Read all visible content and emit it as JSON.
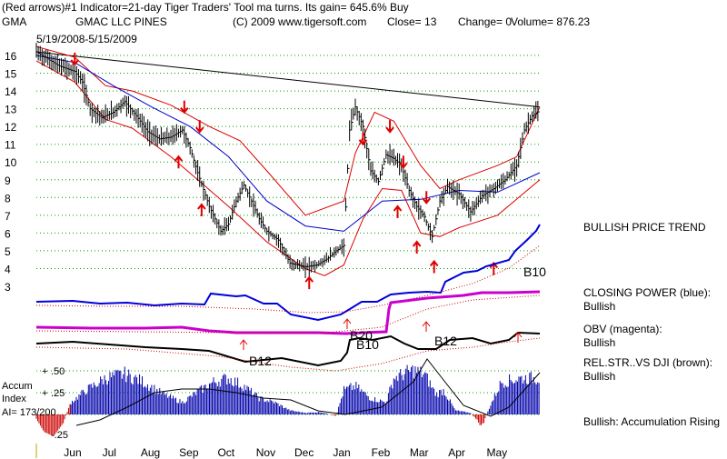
{
  "header": {
    "line1": "(Red arrows)#1 Indicator=21-day Tiger Traders' Tool ma turns. Its gain= 645.6% Buy",
    "ticker": "GMA",
    "company": "GMAC LLC PINES",
    "copyright": "(C) 2009 www.tigersoft.com",
    "close": "Close=  13",
    "change": "Change= 0",
    "volume": "Volume= 876.23",
    "date_range": "5/19/2008-5/15/2009"
  },
  "colors": {
    "price_bars": "#000000",
    "bands": "#dd0000",
    "ma": "#0000cc",
    "closing_power": "#0000dd",
    "obv": "#cc00cc",
    "relstr": "#000000",
    "accum_bars": "#0000aa",
    "accum_negative": "#cc0000",
    "grid": "#00a000",
    "arrows": "#e00000"
  },
  "right_panel": {
    "trend": "BULLISH PRICE TREND",
    "closing_power": "CLOSING POWER (blue):",
    "closing_power_status": "Bullish",
    "obv": "OBV (magenta):",
    "obv_status": "Bullish",
    "relstr": "REL.STR..VS DJI (brown):",
    "relstr_status": "Bullish",
    "accum": "Bullish: Accumulation Rising"
  },
  "accum_panel": {
    "title1": "Accum",
    "title2": "Index",
    "value": "AI= 173/200",
    "ticks": [
      ".50",
      ".25",
      "-.25"
    ]
  },
  "signal_labels": [
    "B10",
    "B20",
    "B10",
    "B12",
    "B12"
  ],
  "chart_data": {
    "type": "line",
    "y_ticks": [
      3,
      4,
      5,
      6,
      7,
      8,
      9,
      10,
      11,
      12,
      13,
      14,
      15,
      16
    ],
    "ylim": [
      3,
      16.5
    ],
    "x_ticks": [
      "Jun",
      "Jul",
      "Aug",
      "Sep",
      "Oct",
      "Nov",
      "Dec",
      "Jan",
      "Feb",
      "Mar",
      "Apr",
      "May"
    ],
    "price_close": [
      [
        0,
        16.2
      ],
      [
        0.3,
        15.8
      ],
      [
        0.6,
        15.4
      ],
      [
        1.0,
        15.1
      ],
      [
        1.2,
        14.5
      ],
      [
        1.4,
        13.0
      ],
      [
        1.7,
        12.5
      ],
      [
        2.0,
        12.8
      ],
      [
        2.3,
        13.4
      ],
      [
        2.6,
        12.6
      ],
      [
        2.9,
        11.7
      ],
      [
        3.2,
        11.3
      ],
      [
        3.5,
        11.4
      ],
      [
        3.8,
        11.8
      ],
      [
        4.0,
        10.8
      ],
      [
        4.2,
        9.4
      ],
      [
        4.5,
        7.5
      ],
      [
        4.8,
        6.1
      ],
      [
        5.0,
        6.5
      ],
      [
        5.2,
        7.8
      ],
      [
        5.4,
        8.7
      ],
      [
        5.6,
        7.8
      ],
      [
        5.8,
        6.8
      ],
      [
        6.0,
        6.1
      ],
      [
        6.3,
        5.6
      ],
      [
        6.6,
        4.3
      ],
      [
        7.0,
        4.1
      ],
      [
        7.3,
        4.2
      ],
      [
        7.6,
        4.6
      ],
      [
        7.8,
        5.0
      ],
      [
        8.0,
        5.3
      ],
      [
        8.15,
        11.8
      ],
      [
        8.3,
        13.1
      ],
      [
        8.5,
        12.0
      ],
      [
        8.7,
        9.5
      ],
      [
        8.9,
        8.9
      ],
      [
        9.1,
        10.4
      ],
      [
        9.3,
        10.2
      ],
      [
        9.5,
        9.8
      ],
      [
        9.7,
        8.4
      ],
      [
        9.9,
        7.5
      ],
      [
        10.1,
        6.9
      ],
      [
        10.3,
        5.8
      ],
      [
        10.5,
        7.8
      ],
      [
        10.7,
        8.6
      ],
      [
        11.0,
        8.2
      ],
      [
        11.3,
        7.2
      ],
      [
        11.6,
        8.1
      ],
      [
        11.9,
        8.5
      ],
      [
        12.2,
        9.0
      ],
      [
        12.5,
        9.8
      ],
      [
        12.7,
        11.8
      ],
      [
        12.9,
        12.6
      ],
      [
        13.1,
        12.9
      ]
    ],
    "ma": [
      [
        0,
        16.0
      ],
      [
        1,
        15.6
      ],
      [
        2,
        14.3
      ],
      [
        3,
        13.1
      ],
      [
        4,
        12.0
      ],
      [
        5,
        10.3
      ],
      [
        6,
        7.8
      ],
      [
        7,
        6.4
      ],
      [
        8,
        6.1
      ],
      [
        9,
        7.8
      ],
      [
        10,
        7.9
      ],
      [
        11,
        8.4
      ],
      [
        12,
        8.3
      ],
      [
        13.1,
        9.4
      ]
    ],
    "upper_band": [
      [
        0,
        16.5
      ],
      [
        1,
        15.9
      ],
      [
        1.8,
        14.3
      ],
      [
        2.5,
        14.0
      ],
      [
        3.5,
        13.2
      ],
      [
        4.5,
        12.0
      ],
      [
        5.3,
        11.2
      ],
      [
        6.0,
        9.5
      ],
      [
        7.0,
        7.0
      ],
      [
        8.0,
        7.8
      ],
      [
        8.3,
        10.5
      ],
      [
        8.8,
        12.8
      ],
      [
        9.3,
        12.3
      ],
      [
        10.0,
        9.8
      ],
      [
        10.5,
        8.5
      ],
      [
        11.0,
        9.0
      ],
      [
        12.0,
        9.8
      ],
      [
        12.5,
        10.3
      ],
      [
        13.1,
        13.1
      ]
    ],
    "lower_band": [
      [
        0,
        15.7
      ],
      [
        1,
        14.5
      ],
      [
        1.8,
        12.4
      ],
      [
        2.5,
        11.9
      ],
      [
        3.5,
        10.3
      ],
      [
        4.2,
        9.0
      ],
      [
        5.0,
        7.5
      ],
      [
        6.0,
        5.5
      ],
      [
        7.0,
        4.0
      ],
      [
        7.5,
        3.6
      ],
      [
        8.0,
        4.2
      ],
      [
        8.5,
        6.8
      ],
      [
        9.0,
        8.5
      ],
      [
        9.5,
        8.4
      ],
      [
        10.0,
        6.0
      ],
      [
        10.5,
        5.8
      ],
      [
        11.0,
        6.3
      ],
      [
        12.0,
        7.0
      ],
      [
        13.1,
        9.0
      ]
    ],
    "trendline": [
      [
        0,
        16.2
      ],
      [
        13.1,
        13.1
      ]
    ],
    "buy_arrows": [
      [
        3.7,
        10.0
      ],
      [
        4.3,
        7.3
      ],
      [
        7.1,
        3.2
      ],
      [
        9.4,
        7.2
      ],
      [
        9.9,
        5.2
      ],
      [
        10.35,
        4.1
      ],
      [
        11.9,
        4.0
      ]
    ],
    "sell_arrows": [
      [
        1.0,
        15.8
      ],
      [
        3.85,
        13.1
      ],
      [
        4.25,
        12.0
      ],
      [
        8.5,
        11.3
      ],
      [
        9.2,
        12.0
      ],
      [
        9.55,
        10.0
      ],
      [
        10.15,
        8.0
      ]
    ],
    "accum_series": {
      "ticks": [
        0.5,
        0.25,
        -0.25
      ],
      "ylim": [
        -0.3,
        0.6
      ]
    }
  }
}
